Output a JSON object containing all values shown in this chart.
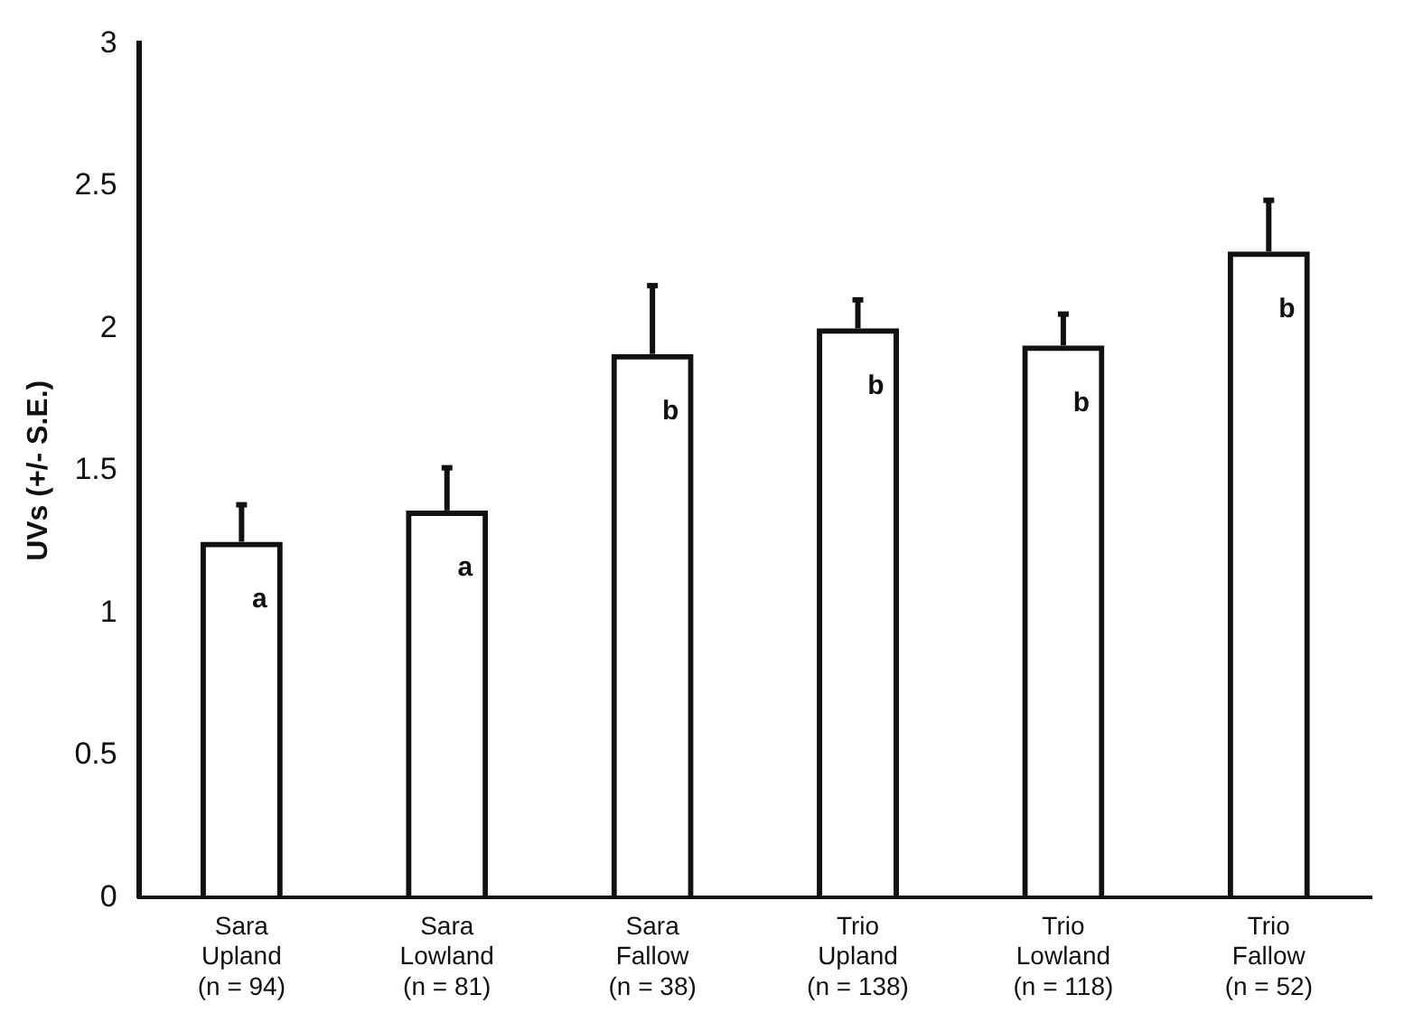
{
  "chart_data": {
    "type": "bar",
    "ylabel": "UVs (+/- S.E.)",
    "categories": [
      "Sara\nUpland\n(n = 94)",
      "Sara\nLowland\n(n = 81)",
      "Sara\nFallow\n(n = 38)",
      "Trio\nUpland\n(n = 138)",
      "Trio\nLowland\n(n = 118)",
      "Trio\nFallow\n(n = 52)"
    ],
    "values": [
      1.25,
      1.36,
      1.91,
      2.0,
      1.94,
      2.27
    ],
    "errors": [
      [
        1.25,
        1.38
      ],
      [
        1.36,
        1.51
      ],
      [
        1.91,
        2.15
      ],
      [
        2.0,
        2.1
      ],
      [
        1.94,
        2.05
      ],
      [
        2.27,
        2.45
      ]
    ],
    "color": "#111111",
    "ylim": [
      0,
      3
    ],
    "yticks": [
      0,
      0.5,
      1,
      1.5,
      2,
      2.5,
      3
    ],
    "grid": false,
    "legend": false,
    "annotations": [
      "a",
      "a",
      "b",
      "b",
      "b",
      "b"
    ]
  }
}
